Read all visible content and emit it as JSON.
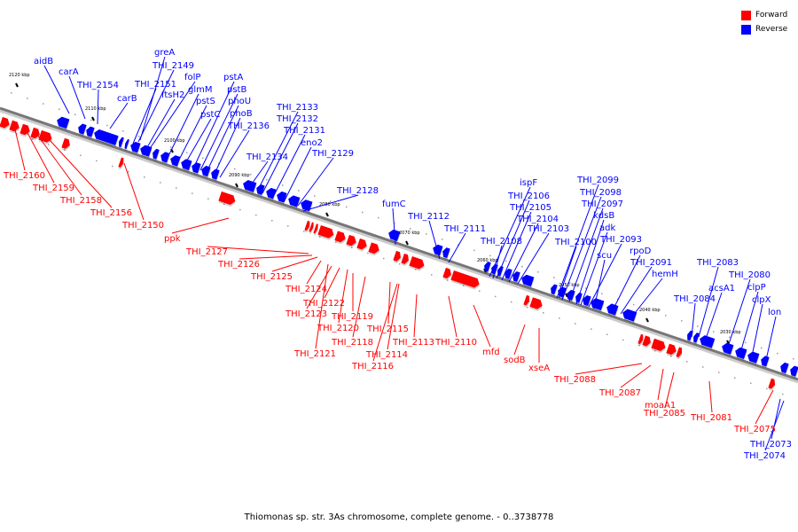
{
  "caption": "Thiomonas sp. str. 3As chromosome, complete genome. - 0..3738778",
  "legend": [
    {
      "label": "Forward",
      "color": "#ff0000"
    },
    {
      "label": "Reverse",
      "color": "#0000ff"
    }
  ],
  "colors": {
    "forward": "#ff0000",
    "reverse": "#0000ff",
    "axis": "#777777"
  },
  "ticks": [
    "2120 kbp",
    "2110 kbp",
    "2100 kbp",
    "2090 kbp",
    "2080 kbp",
    "2070 kbp",
    "2060 kbp",
    "2050 kbp",
    "2040 kbp",
    "2030 kbp"
  ],
  "reverse_labels": [
    "aidB",
    "carA",
    "THI_2154",
    "carB",
    "greA",
    "THI_2149",
    "THI_2151",
    "folP",
    "ftsH2",
    "glmM",
    "pstS",
    "pstC",
    "pstA",
    "pstB",
    "phoU",
    "phoB",
    "THI_2136",
    "THI_2133",
    "THI_2132",
    "THI_2131",
    "eno2",
    "THI_2134",
    "THI_2129",
    "THI_2128",
    "fumC",
    "THI_2112",
    "THI_2111",
    "ispF",
    "THI_2106",
    "THI_2105",
    "THI_2104",
    "THI_2103",
    "THI_2108",
    "THI_2099",
    "THI_2098",
    "THI_2097",
    "kdsB",
    "adk",
    "THI_2100",
    "THI_2093",
    "scu",
    "rpoD",
    "THI_2091",
    "hemH",
    "THI_2083",
    "acsA1",
    "THI_2084",
    "THI_2080",
    "clpP",
    "clpX",
    "lon",
    "THI_2073",
    "THI_2074"
  ],
  "forward_labels": [
    "THI_2160",
    "THI_2159",
    "THI_2158",
    "THI_2156",
    "THI_2150",
    "ppk",
    "THI_2127",
    "THI_2126",
    "THI_2125",
    "THI_2124",
    "THI_2122",
    "THI_2123",
    "THI_2119",
    "THI_2120",
    "THI_2118",
    "THI_2121",
    "THI_2115",
    "THI_2114",
    "THI_2116",
    "THI_2113",
    "THI_2110",
    "mfd",
    "sodB",
    "xseA",
    "THI_2088",
    "THI_2087",
    "moaA1",
    "THI_2085",
    "THI_2081",
    "THI_2075"
  ]
}
